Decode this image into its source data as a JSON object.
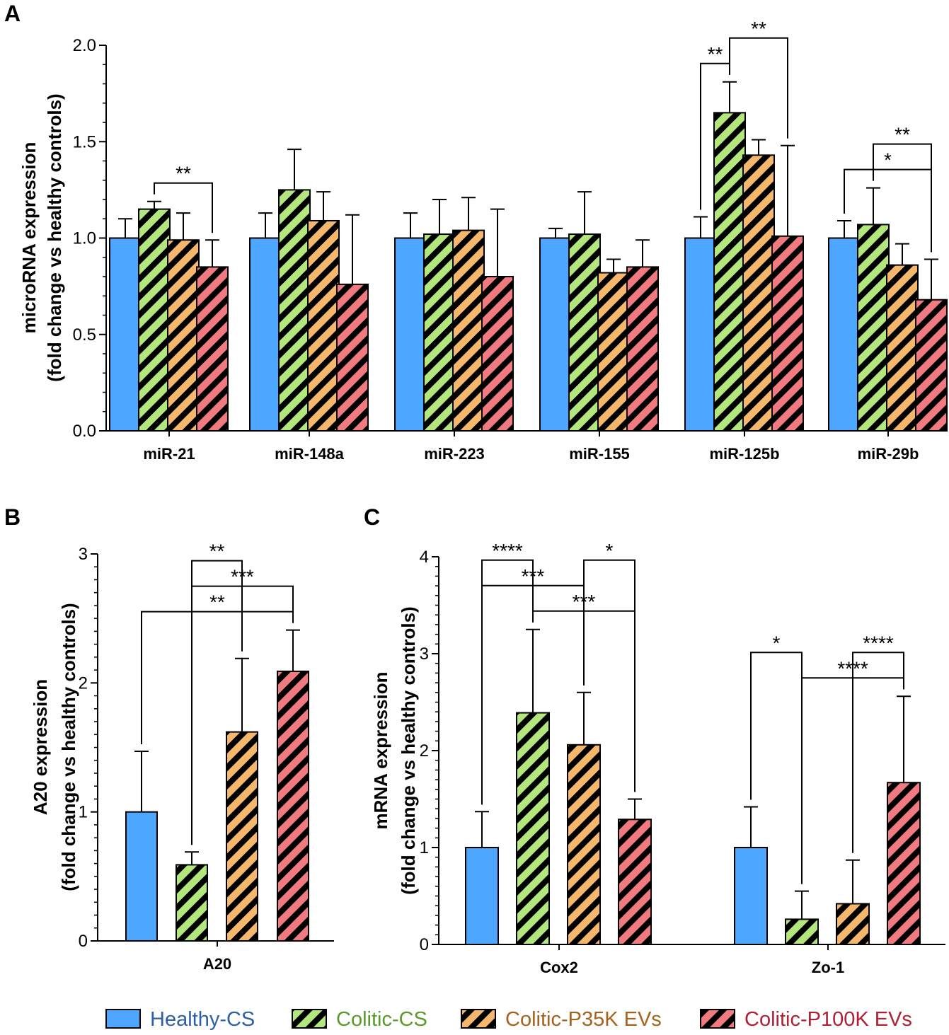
{
  "colors": {
    "healthy": "#4da6ff",
    "colitic_cs": "#b3e67d",
    "p35k": "#f5b76b",
    "p100k": "#f07a80",
    "legend_healthy_text": "#2e5fa8",
    "legend_colitic_text": "#5a9a2a",
    "legend_p35k_text": "#a5621e",
    "legend_p100k_text": "#b02035"
  },
  "legend": {
    "items": [
      "Healthy-CS",
      "Colitic-CS",
      "Colitic-P35K EVs",
      "Colitic-P100K EVs"
    ]
  },
  "chart_data": [
    {
      "type": "bar",
      "panel": "A",
      "title": "",
      "xlabel": "",
      "ylabel": [
        "microRNA expression",
        "(fold change vs healthy controls)"
      ],
      "ylim": [
        0,
        2.0
      ],
      "yticks": [
        "0.0",
        "0.5",
        "1.0",
        "1.5",
        "2.0"
      ],
      "ytick_values": [
        0,
        0.5,
        1.0,
        1.5,
        2.0
      ],
      "categories": [
        "miR-21",
        "miR-148a",
        "miR-223",
        "miR-155",
        "miR-125b",
        "miR-29b"
      ],
      "series": [
        {
          "name": "Healthy-CS",
          "values": [
            1.0,
            1.0,
            1.0,
            1.0,
            1.0,
            1.0
          ],
          "errors": [
            0.1,
            0.13,
            0.13,
            0.05,
            0.11,
            0.09
          ]
        },
        {
          "name": "Colitic-CS",
          "values": [
            1.15,
            1.25,
            1.02,
            1.02,
            1.65,
            1.07
          ],
          "errors": [
            0.04,
            0.21,
            0.18,
            0.22,
            0.16,
            0.19
          ]
        },
        {
          "name": "Colitic-P35K EVs",
          "values": [
            0.99,
            1.09,
            1.04,
            0.82,
            1.43,
            0.86
          ],
          "errors": [
            0.14,
            0.15,
            0.17,
            0.07,
            0.08,
            0.11
          ]
        },
        {
          "name": "Colitic-P100K EVs",
          "values": [
            0.85,
            0.76,
            0.8,
            0.85,
            1.01,
            0.68
          ],
          "errors": [
            0.14,
            0.36,
            0.35,
            0.14,
            0.47,
            0.21
          ]
        }
      ],
      "significance": [
        {
          "category": 0,
          "from": 1,
          "to": 3,
          "label": "**"
        },
        {
          "category": 4,
          "from": 0,
          "to": 1,
          "label": "**"
        },
        {
          "category": 4,
          "from": 1,
          "to": 3,
          "label": "**"
        },
        {
          "category": 5,
          "from": 0,
          "to": 3,
          "label": "*"
        },
        {
          "category": 5,
          "from": 1,
          "to": 3,
          "label": "**"
        }
      ]
    },
    {
      "type": "bar",
      "panel": "B",
      "title": "",
      "xlabel": "",
      "ylabel": [
        "A20 expression",
        "(fold change vs healthy controls)"
      ],
      "ylim": [
        0,
        3
      ],
      "yticks": [
        "0",
        "1",
        "2",
        "3"
      ],
      "ytick_values": [
        0,
        1,
        2,
        3
      ],
      "categories": [
        "A20"
      ],
      "series": [
        {
          "name": "Healthy-CS",
          "values": [
            1.0
          ],
          "errors": [
            0.47
          ]
        },
        {
          "name": "Colitic-CS",
          "values": [
            0.59
          ],
          "errors": [
            0.1
          ]
        },
        {
          "name": "Colitic-P35K EVs",
          "values": [
            1.62
          ],
          "errors": [
            0.57
          ]
        },
        {
          "name": "Colitic-P100K EVs",
          "values": [
            2.09
          ],
          "errors": [
            0.32
          ]
        }
      ],
      "significance": [
        {
          "category": 0,
          "from": 0,
          "to": 3,
          "label": "**"
        },
        {
          "category": 0,
          "from": 1,
          "to": 3,
          "label": "***"
        },
        {
          "category": 0,
          "from": 1,
          "to": 2,
          "label": "**"
        }
      ]
    },
    {
      "type": "bar",
      "panel": "C",
      "title": "",
      "xlabel": "",
      "ylabel": [
        "mRNA expression",
        "(fold change vs healthy controls)"
      ],
      "ylim": [
        0,
        4
      ],
      "yticks": [
        "0",
        "1",
        "2",
        "3",
        "4"
      ],
      "ytick_values": [
        0,
        1,
        2,
        3,
        4
      ],
      "categories": [
        "Cox2",
        "Zo-1"
      ],
      "series": [
        {
          "name": "Healthy-CS",
          "values": [
            1.0,
            1.0
          ],
          "errors": [
            0.37,
            0.42
          ]
        },
        {
          "name": "Colitic-CS",
          "values": [
            2.39,
            0.26
          ],
          "errors": [
            0.86,
            0.29
          ]
        },
        {
          "name": "Colitic-P35K EVs",
          "values": [
            2.06,
            0.42
          ],
          "errors": [
            0.54,
            0.45
          ]
        },
        {
          "name": "Colitic-P100K EVs",
          "values": [
            1.29,
            1.67
          ],
          "errors": [
            0.21,
            0.89
          ]
        }
      ],
      "significance": [
        {
          "category": 0,
          "from": 1,
          "to": 3,
          "label": "***"
        },
        {
          "category": 0,
          "from": 0,
          "to": 2,
          "label": "***"
        },
        {
          "category": 0,
          "from": 0,
          "to": 1,
          "label": "****"
        },
        {
          "category": 0,
          "from": 2,
          "to": 3,
          "label": "*"
        },
        {
          "category": 1,
          "from": 1,
          "to": 3,
          "label": "****"
        },
        {
          "category": 1,
          "from": 2,
          "to": 3,
          "label": "****"
        },
        {
          "category": 1,
          "from": 0,
          "to": 1,
          "label": "*"
        }
      ]
    }
  ]
}
